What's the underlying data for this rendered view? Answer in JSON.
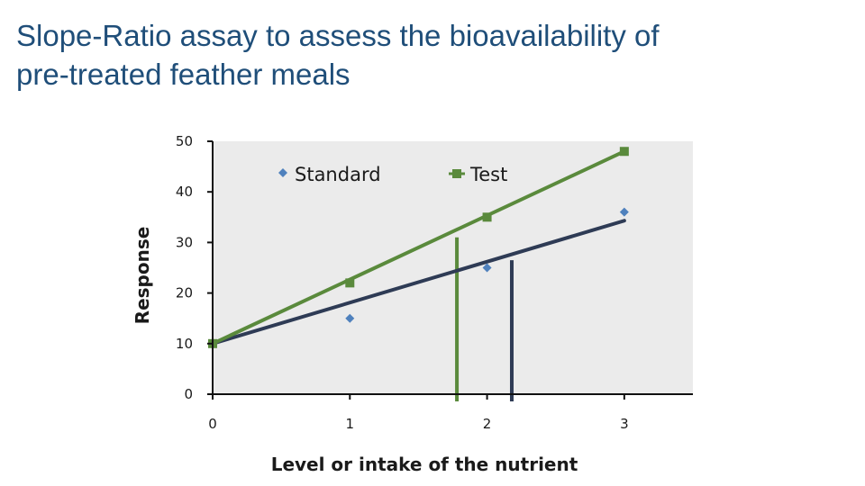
{
  "title": {
    "line1": "Slope-Ratio assay to assess the bioavailability of",
    "line2": "pre-treated feather meals"
  },
  "colors": {
    "standard_points": "#4f81bd",
    "standard_line": "#2e3b55",
    "test": "#5a8a3c",
    "plot_background": "#ebebeb"
  },
  "chart_data": {
    "type": "scatter",
    "xlabel": "Level or intake of the nutrient",
    "ylabel": "Response",
    "xlim": [
      0,
      3.5
    ],
    "ylim": [
      0,
      50
    ],
    "xticks": [
      "0",
      "1",
      "2",
      "3"
    ],
    "yticks": [
      "0",
      "10",
      "20",
      "30",
      "40",
      "50"
    ],
    "legend_position": "top",
    "grid": false,
    "series": [
      {
        "name": "Standard",
        "marker": "diamond",
        "x": [
          0,
          1,
          2,
          3
        ],
        "y": [
          10,
          15,
          25,
          36
        ],
        "trendline": {
          "x": [
            0,
            3
          ],
          "y": [
            10,
            34.3
          ]
        }
      },
      {
        "name": "Test",
        "marker": "square",
        "x": [
          0,
          1,
          2,
          3
        ],
        "y": [
          10,
          22,
          35,
          48
        ],
        "trendline": {
          "x": [
            0,
            3
          ],
          "y": [
            10,
            48
          ]
        }
      }
    ],
    "vertical_markers": [
      {
        "series": "Test",
        "x": 1.78,
        "y": 31
      },
      {
        "series": "Standard",
        "x": 2.18,
        "y": 26.5
      }
    ]
  }
}
